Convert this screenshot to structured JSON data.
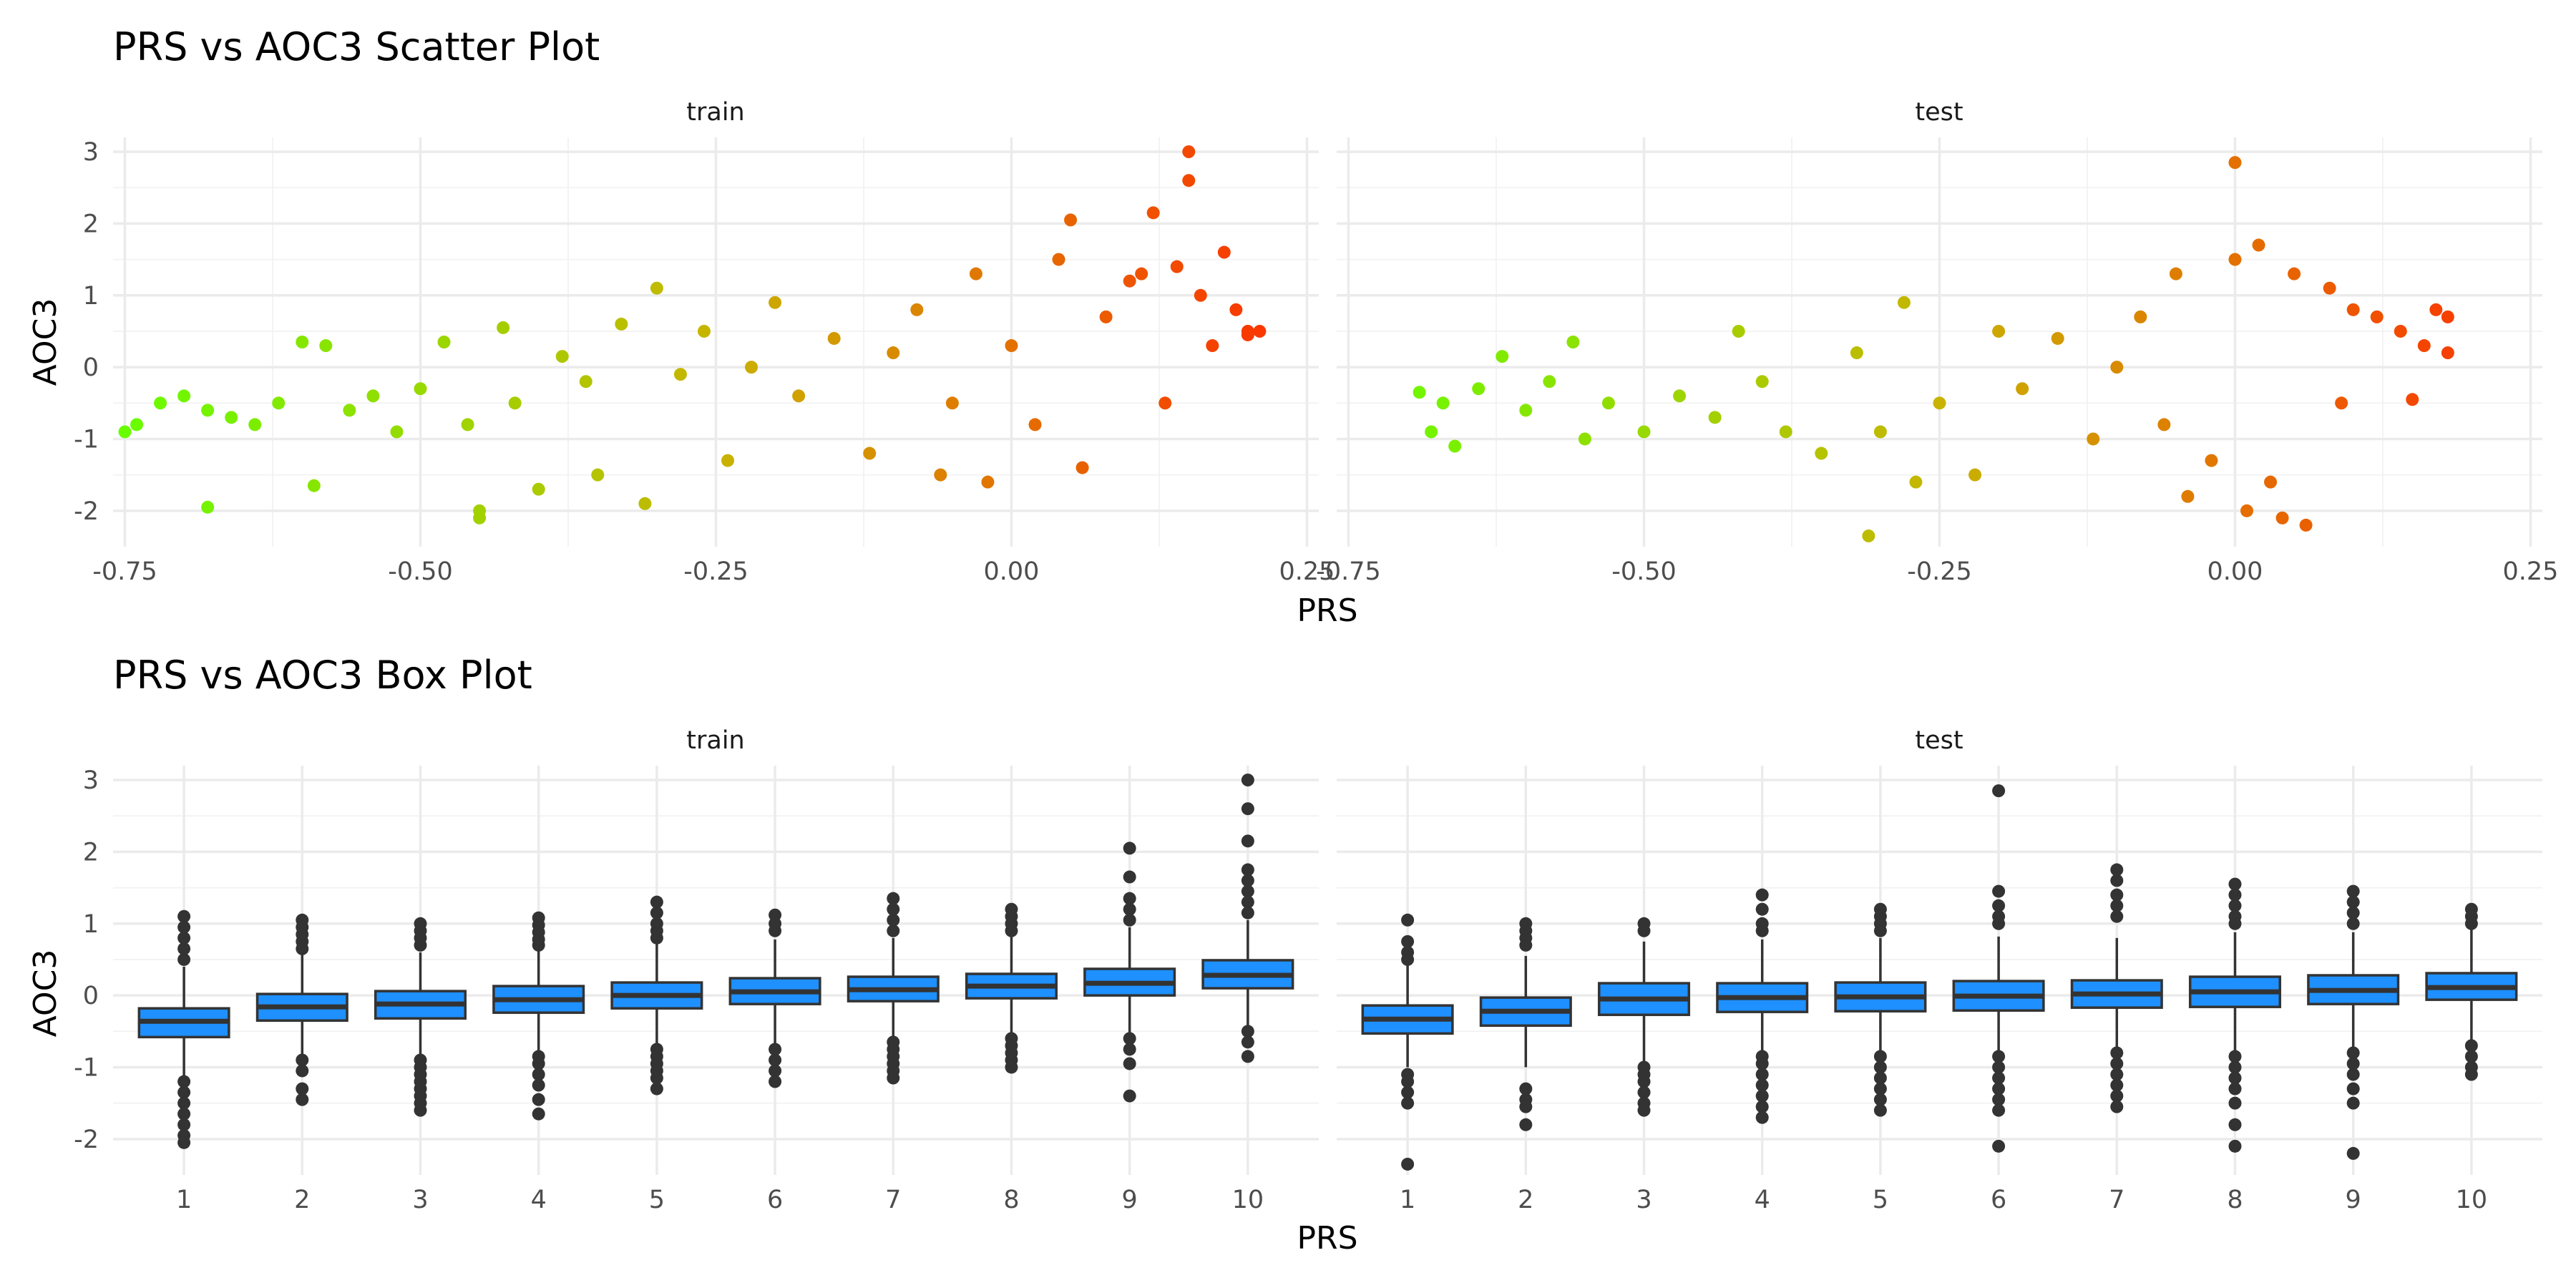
{
  "chart_data": [
    {
      "type": "scatter",
      "title": "PRS vs AOC3 Scatter Plot",
      "xlabel": "PRS",
      "ylabel": "AOC3",
      "panels": [
        "train",
        "test"
      ],
      "xlim": [
        -0.76,
        0.26
      ],
      "ylim": [
        -2.5,
        3.2
      ],
      "x_ticks": [
        "-0.75",
        "-0.50",
        "-0.25",
        "0.00",
        "0.25"
      ],
      "x_tick_values": [
        -0.75,
        -0.5,
        -0.25,
        0.0,
        0.25
      ],
      "y_ticks": [
        "-2",
        "-1",
        "0",
        "1",
        "2",
        "3"
      ],
      "y_tick_values": [
        -2,
        -1,
        0,
        1,
        2,
        3
      ],
      "color_scale": {
        "low": "#66ff00",
        "mid": "#c8b400",
        "high": "#ff2a00"
      },
      "grid": true,
      "series": [
        {
          "name": "train",
          "points": [
            [
              -0.75,
              -0.9
            ],
            [
              -0.74,
              -0.8
            ],
            [
              -0.72,
              -0.5
            ],
            [
              -0.7,
              -0.4
            ],
            [
              -0.68,
              -0.6
            ],
            [
              -0.68,
              -1.95
            ],
            [
              -0.66,
              -0.7
            ],
            [
              -0.64,
              -0.8
            ],
            [
              -0.62,
              -0.5
            ],
            [
              -0.6,
              0.35
            ],
            [
              -0.59,
              -1.65
            ],
            [
              -0.58,
              0.3
            ],
            [
              -0.56,
              -0.6
            ],
            [
              -0.54,
              -0.4
            ],
            [
              -0.52,
              -0.9
            ],
            [
              -0.5,
              -0.3
            ],
            [
              -0.48,
              0.35
            ],
            [
              -0.46,
              -0.8
            ],
            [
              -0.45,
              -2.0
            ],
            [
              -0.45,
              -2.1
            ],
            [
              -0.43,
              0.55
            ],
            [
              -0.42,
              -0.5
            ],
            [
              -0.4,
              -1.7
            ],
            [
              -0.38,
              0.15
            ],
            [
              -0.36,
              -0.2
            ],
            [
              -0.35,
              -1.5
            ],
            [
              -0.33,
              0.6
            ],
            [
              -0.31,
              -1.9
            ],
            [
              -0.3,
              1.1
            ],
            [
              -0.28,
              -0.1
            ],
            [
              -0.26,
              0.5
            ],
            [
              -0.24,
              -1.3
            ],
            [
              -0.22,
              0.0
            ],
            [
              -0.2,
              0.9
            ],
            [
              -0.18,
              -0.4
            ],
            [
              -0.15,
              0.4
            ],
            [
              -0.12,
              -1.2
            ],
            [
              -0.1,
              0.2
            ],
            [
              -0.08,
              0.8
            ],
            [
              -0.06,
              -1.5
            ],
            [
              -0.05,
              -0.5
            ],
            [
              -0.03,
              1.3
            ],
            [
              -0.02,
              -1.6
            ],
            [
              0.0,
              0.3
            ],
            [
              0.02,
              -0.8
            ],
            [
              0.04,
              1.5
            ],
            [
              0.05,
              2.05
            ],
            [
              0.06,
              -1.4
            ],
            [
              0.08,
              0.7
            ],
            [
              0.1,
              1.2
            ],
            [
              0.11,
              1.3
            ],
            [
              0.12,
              2.15
            ],
            [
              0.13,
              -0.5
            ],
            [
              0.14,
              1.4
            ],
            [
              0.15,
              3.0
            ],
            [
              0.15,
              2.6
            ],
            [
              0.16,
              1.0
            ],
            [
              0.17,
              0.3
            ],
            [
              0.18,
              1.6
            ],
            [
              0.19,
              0.8
            ],
            [
              0.2,
              0.5
            ],
            [
              0.2,
              0.45
            ],
            [
              0.21,
              0.5
            ]
          ]
        },
        {
          "name": "test",
          "points": [
            [
              -0.69,
              -0.35
            ],
            [
              -0.68,
              -0.9
            ],
            [
              -0.67,
              -0.5
            ],
            [
              -0.66,
              -1.1
            ],
            [
              -0.64,
              -0.3
            ],
            [
              -0.62,
              0.15
            ],
            [
              -0.6,
              -0.6
            ],
            [
              -0.58,
              -0.2
            ],
            [
              -0.56,
              0.35
            ],
            [
              -0.55,
              -1.0
            ],
            [
              -0.53,
              -0.5
            ],
            [
              -0.5,
              -0.9
            ],
            [
              -0.47,
              -0.4
            ],
            [
              -0.44,
              -0.7
            ],
            [
              -0.42,
              0.5
            ],
            [
              -0.4,
              -0.2
            ],
            [
              -0.38,
              -0.9
            ],
            [
              -0.35,
              -1.2
            ],
            [
              -0.32,
              0.2
            ],
            [
              -0.31,
              -2.35
            ],
            [
              -0.3,
              -0.9
            ],
            [
              -0.28,
              0.9
            ],
            [
              -0.27,
              -1.6
            ],
            [
              -0.25,
              -0.5
            ],
            [
              -0.22,
              -1.5
            ],
            [
              -0.2,
              0.5
            ],
            [
              -0.18,
              -0.3
            ],
            [
              -0.15,
              0.4
            ],
            [
              -0.12,
              -1.0
            ],
            [
              -0.1,
              0.0
            ],
            [
              -0.08,
              0.7
            ],
            [
              -0.06,
              -0.8
            ],
            [
              -0.05,
              1.3
            ],
            [
              -0.04,
              -1.8
            ],
            [
              -0.02,
              -1.3
            ],
            [
              0.0,
              2.85
            ],
            [
              0.0,
              1.5
            ],
            [
              0.01,
              -2.0
            ],
            [
              0.02,
              1.7
            ],
            [
              0.03,
              -1.6
            ],
            [
              0.04,
              -2.1
            ],
            [
              0.05,
              1.3
            ],
            [
              0.06,
              -2.2
            ],
            [
              0.08,
              1.1
            ],
            [
              0.09,
              -0.5
            ],
            [
              0.1,
              0.8
            ],
            [
              0.12,
              0.7
            ],
            [
              0.14,
              0.5
            ],
            [
              0.15,
              -0.45
            ],
            [
              0.16,
              0.3
            ],
            [
              0.17,
              0.8
            ],
            [
              0.18,
              0.2
            ],
            [
              0.18,
              0.7
            ]
          ]
        }
      ]
    },
    {
      "type": "box",
      "title": "PRS vs AOC3 Box Plot",
      "xlabel": "PRS",
      "ylabel": "AOC3",
      "panels": [
        "train",
        "test"
      ],
      "categories": [
        "1",
        "2",
        "3",
        "4",
        "5",
        "6",
        "7",
        "8",
        "9",
        "10"
      ],
      "ylim": [
        -2.5,
        3.2
      ],
      "y_ticks": [
        "-2",
        "-1",
        "0",
        "1",
        "2",
        "3"
      ],
      "y_tick_values": [
        -2,
        -1,
        0,
        1,
        2,
        3
      ],
      "box_color": "#1e90ff",
      "outline_color": "#333333",
      "grid": true,
      "series": [
        {
          "name": "train",
          "boxes": [
            {
              "q1": -0.58,
              "median": -0.36,
              "q3": -0.18,
              "lo": -1.15,
              "hi": 0.4,
              "outliers": [
                1.1,
                0.95,
                0.8,
                0.65,
                0.5,
                -1.2,
                -1.35,
                -1.5,
                -1.65,
                -1.8,
                -1.95,
                -2.05
              ]
            },
            {
              "q1": -0.35,
              "median": -0.16,
              "q3": 0.02,
              "lo": -0.9,
              "hi": 0.6,
              "outliers": [
                1.05,
                0.95,
                0.85,
                0.75,
                0.65,
                -0.9,
                -1.05,
                -1.3,
                -1.45
              ]
            },
            {
              "q1": -0.32,
              "median": -0.12,
              "q3": 0.06,
              "lo": -0.88,
              "hi": 0.6,
              "outliers": [
                1.0,
                0.9,
                0.8,
                0.7,
                -0.9,
                -1.0,
                -1.1,
                -1.2,
                -1.3,
                -1.4,
                -1.5,
                -1.6
              ]
            },
            {
              "q1": -0.24,
              "median": -0.06,
              "q3": 0.13,
              "lo": -0.8,
              "hi": 0.65,
              "outliers": [
                1.08,
                0.98,
                0.88,
                0.78,
                0.7,
                -0.85,
                -0.95,
                -1.1,
                -1.25,
                -1.45,
                -1.65
              ]
            },
            {
              "q1": -0.18,
              "median": 0.0,
              "q3": 0.18,
              "lo": -0.72,
              "hi": 0.72,
              "outliers": [
                1.3,
                1.15,
                1.0,
                0.9,
                0.8,
                -0.75,
                -0.85,
                -0.95,
                -1.05,
                -1.15,
                -1.3
              ]
            },
            {
              "q1": -0.12,
              "median": 0.05,
              "q3": 0.24,
              "lo": -0.68,
              "hi": 0.78,
              "outliers": [
                1.12,
                1.0,
                0.9,
                -0.75,
                -0.9,
                -1.05,
                -1.2
              ]
            },
            {
              "q1": -0.08,
              "median": 0.08,
              "q3": 0.26,
              "lo": -0.64,
              "hi": 0.8,
              "outliers": [
                1.35,
                1.2,
                1.05,
                0.9,
                -0.65,
                -0.75,
                -0.85,
                -0.95,
                -1.05,
                -1.15
              ]
            },
            {
              "q1": -0.04,
              "median": 0.13,
              "q3": 0.3,
              "lo": -0.6,
              "hi": 0.85,
              "outliers": [
                1.2,
                1.1,
                1.0,
                0.9,
                -0.6,
                -0.7,
                -0.8,
                -0.9,
                -1.0
              ]
            },
            {
              "q1": 0.0,
              "median": 0.17,
              "q3": 0.37,
              "lo": -0.55,
              "hi": 0.95,
              "outliers": [
                2.05,
                1.65,
                1.35,
                1.2,
                1.05,
                -0.6,
                -0.75,
                -0.95,
                -1.4
              ]
            },
            {
              "q1": 0.1,
              "median": 0.28,
              "q3": 0.49,
              "lo": -0.45,
              "hi": 1.05,
              "outliers": [
                3.0,
                2.6,
                2.15,
                1.75,
                1.6,
                1.45,
                1.3,
                1.15,
                -0.5,
                -0.65,
                -0.85
              ]
            }
          ]
        },
        {
          "name": "test",
          "boxes": [
            {
              "q1": -0.53,
              "median": -0.33,
              "q3": -0.14,
              "lo": -1.0,
              "hi": 0.42,
              "outliers": [
                1.05,
                0.75,
                0.6,
                0.5,
                -1.1,
                -1.2,
                -1.35,
                -1.5,
                -2.35
              ]
            },
            {
              "q1": -0.42,
              "median": -0.22,
              "q3": -0.03,
              "lo": -1.0,
              "hi": 0.55,
              "outliers": [
                1.0,
                0.9,
                0.8,
                0.7,
                -1.3,
                -1.45,
                -1.55,
                -1.8
              ]
            },
            {
              "q1": -0.27,
              "median": -0.05,
              "q3": 0.17,
              "lo": -0.95,
              "hi": 0.75,
              "outliers": [
                1.0,
                0.9,
                -1.0,
                -1.1,
                -1.2,
                -1.35,
                -1.5,
                -1.6
              ]
            },
            {
              "q1": -0.23,
              "median": -0.03,
              "q3": 0.17,
              "lo": -0.82,
              "hi": 0.78,
              "outliers": [
                1.4,
                1.2,
                1.0,
                0.9,
                -0.85,
                -0.95,
                -1.1,
                -1.25,
                -1.4,
                -1.55,
                -1.7
              ]
            },
            {
              "q1": -0.22,
              "median": -0.02,
              "q3": 0.18,
              "lo": -0.82,
              "hi": 0.8,
              "outliers": [
                1.2,
                1.1,
                1.0,
                0.9,
                -0.85,
                -1.0,
                -1.15,
                -1.3,
                -1.45,
                -1.6
              ]
            },
            {
              "q1": -0.21,
              "median": -0.01,
              "q3": 0.2,
              "lo": -0.82,
              "hi": 0.82,
              "outliers": [
                2.85,
                1.45,
                1.25,
                1.1,
                1.0,
                -0.85,
                -1.0,
                -1.15,
                -1.3,
                -1.45,
                -1.6,
                -2.1
              ]
            },
            {
              "q1": -0.17,
              "median": 0.02,
              "q3": 0.21,
              "lo": -0.75,
              "hi": 0.8,
              "outliers": [
                1.75,
                1.6,
                1.4,
                1.25,
                1.1,
                -0.8,
                -0.95,
                -1.1,
                -1.25,
                -1.4,
                -1.55
              ]
            },
            {
              "q1": -0.16,
              "median": 0.05,
              "q3": 0.26,
              "lo": -0.8,
              "hi": 0.88,
              "outliers": [
                1.55,
                1.4,
                1.25,
                1.1,
                1.0,
                -0.85,
                -1.0,
                -1.15,
                -1.3,
                -1.5,
                -1.8,
                -2.1
              ]
            },
            {
              "q1": -0.12,
              "median": 0.07,
              "q3": 0.28,
              "lo": -0.72,
              "hi": 0.88,
              "outliers": [
                1.45,
                1.3,
                1.15,
                1.0,
                -0.8,
                -0.95,
                -1.1,
                -1.3,
                -1.5,
                -2.2
              ]
            },
            {
              "q1": -0.06,
              "median": 0.11,
              "q3": 0.31,
              "lo": -0.65,
              "hi": 0.92,
              "outliers": [
                1.2,
                1.1,
                1.0,
                -0.7,
                -0.85,
                -1.0,
                -1.1
              ]
            }
          ]
        }
      ]
    }
  ]
}
